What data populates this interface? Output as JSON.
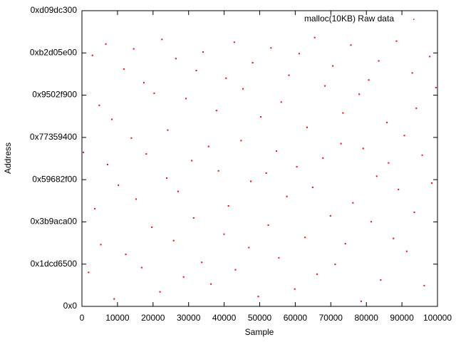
{
  "chart_data": {
    "type": "scatter",
    "x_label": "Sample",
    "y_label": "Address",
    "xlim": [
      0,
      100000
    ],
    "xticks": [
      0,
      10000,
      20000,
      30000,
      40000,
      50000,
      60000,
      70000,
      80000,
      90000,
      100000
    ],
    "ylim": [
      0,
      3500000000
    ],
    "yticks": [
      {
        "value": 0,
        "label": "0x0"
      },
      {
        "value": 500000000,
        "label": "0x1dcd6500"
      },
      {
        "value": 1000000000,
        "label": "0x3b9aca00"
      },
      {
        "value": 1500000000,
        "label": "0x59682f00"
      },
      {
        "value": 2000000000,
        "label": "0x77359400"
      },
      {
        "value": 2500000000,
        "label": "0x9502f900"
      },
      {
        "value": 3000000000,
        "label": "0xb2d05e00"
      },
      {
        "value": 3500000000,
        "label": "0xd09dc300"
      }
    ],
    "grid": false,
    "legend": "top-right",
    "series": [
      {
        "name": "malloc(10KB) Raw data",
        "color": "#ff0000",
        "x": [
          412,
          1873,
          2950,
          3621,
          4877,
          5302,
          6718,
          7195,
          8430,
          9066,
          10254,
          11790,
          12333,
          13908,
          14561,
          15247,
          16802,
          17413,
          18095,
          19670,
          20318,
          21944,
          22507,
          23861,
          24129,
          25780,
          26415,
          27036,
          28592,
          29247,
          30883,
          31420,
          32165,
          33709,
          34058,
          35621,
          36294,
          37850,
          38412,
          39977,
          40536,
          41208,
          42853,
          43190,
          44765,
          45302,
          46941,
          47488,
          48027,
          49613,
          50285,
          51834,
          52406,
          53179,
          54720,
          55391,
          56058,
          57642,
          58213,
          59870,
          60437,
          61092,
          62758,
          63315,
          64901,
          65466,
          66123,
          67789,
          68350,
          69904,
          70571,
          71228,
          72863,
          73419,
          74082,
          75647,
          76215,
          77980,
          78534,
          79106,
          80672,
          81349,
          82915,
          83480,
          84037,
          85793,
          86251,
          87618,
          88470,
          89025,
          90689,
          91356,
          92912,
          93487,
          94043,
          95708,
          96264,
          97831,
          98396,
          99572
        ],
        "values": [
          1823000000,
          402000000,
          2971000000,
          1156000000,
          2380000000,
          731000000,
          3105000000,
          1679000000,
          2214000000,
          88000000,
          1435000000,
          2809000000,
          615000000,
          1992000000,
          3048000000,
          1270000000,
          459000000,
          2647000000,
          1804000000,
          937000000,
          2523000000,
          172000000,
          3160000000,
          1518000000,
          2086000000,
          779000000,
          2933000000,
          1361000000,
          348000000,
          2460000000,
          1725000000,
          1047000000,
          2792000000,
          521000000,
          3011000000,
          1893000000,
          264000000,
          2318000000,
          1604000000,
          855000000,
          2701000000,
          1189000000,
          3127000000,
          433000000,
          1962000000,
          2575000000,
          696000000,
          1480000000,
          2884000000,
          117000000,
          2243000000,
          1577000000,
          962000000,
          3059000000,
          1838000000,
          575000000,
          2418000000,
          1301000000,
          2736000000,
          205000000,
          1652000000,
          2992000000,
          816000000,
          2119000000,
          1409000000,
          3182000000,
          381000000,
          1756000000,
          2610000000,
          1071000000,
          2846000000,
          497000000,
          1927000000,
          2289000000,
          742000000,
          3093000000,
          1225000000,
          2511000000,
          60000000,
          1869000000,
          2680000000,
          1002000000,
          1541000000,
          2906000000,
          313000000,
          2177000000,
          1698000000,
          804000000,
          3140000000,
          1384000000,
          2022000000,
          652000000,
          2763000000,
          1113000000,
          2345000000,
          1790000000,
          246000000,
          2957000000,
          1460000000,
          2590000000
        ]
      }
    ]
  }
}
